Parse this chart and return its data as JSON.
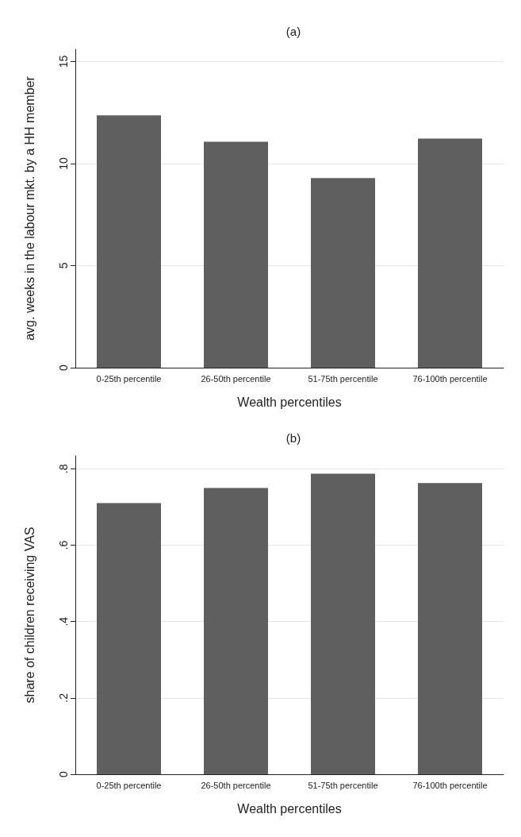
{
  "chart_data": [
    {
      "type": "bar",
      "title": "(a)",
      "xlabel": "Wealth percentiles",
      "ylabel": "avg. weeks in the labour mkt. by a HH member",
      "categories": [
        "0-25th percentile",
        "26-50th percentile",
        "51-75th percentile",
        "76-100th percentile"
      ],
      "values": [
        12.36,
        11.07,
        9.29,
        11.22
      ],
      "color": "#5f5f5f",
      "ylim": [
        0,
        15.6
      ],
      "yticks": [
        0,
        5,
        10,
        15
      ],
      "grid": "y"
    },
    {
      "type": "bar",
      "title": "(b)",
      "xlabel": "Wealth percentiles",
      "ylabel": "share of children receiving VAS",
      "categories": [
        "0-25th percentile",
        "26-50th percentile",
        "51-75th percentile",
        "76-100th percentile"
      ],
      "values": [
        0.71,
        0.75,
        0.787,
        0.763
      ],
      "color": "#5f5f5f",
      "ylim": [
        0,
        0.834
      ],
      "yticks": [
        0,
        {
          "value": 0.2,
          "label": ".2"
        },
        {
          "value": 0.4,
          "label": ".4"
        },
        {
          "value": 0.6,
          "label": ".6"
        },
        {
          "value": 0.8,
          "label": ".8"
        }
      ],
      "grid": "y"
    }
  ]
}
